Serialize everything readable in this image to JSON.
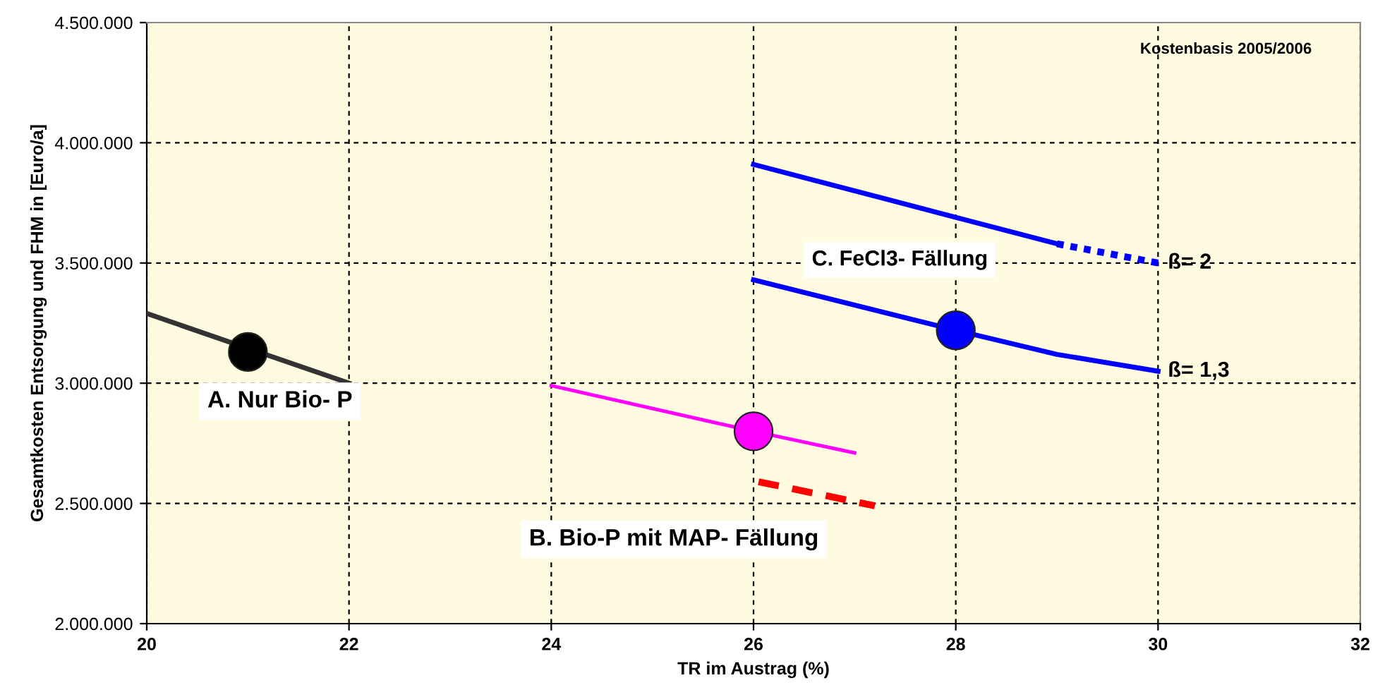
{
  "chart_data": {
    "type": "line",
    "xlabel": "TR im Austrag (%)",
    "ylabel": "Gesamtkosten Entsorgung und FHM in [Euro/a]",
    "xlim": [
      20,
      32
    ],
    "xticks": [
      20,
      22,
      24,
      26,
      28,
      30,
      32
    ],
    "ylim": [
      2000000,
      4500000
    ],
    "yticks": [
      {
        "value": 2000000,
        "label": "2.000.000"
      },
      {
        "value": 2500000,
        "label": "2.500.000"
      },
      {
        "value": 3000000,
        "label": "3.000.000"
      },
      {
        "value": 3500000,
        "label": "3.500.000"
      },
      {
        "value": 4000000,
        "label": "4.000.000"
      },
      {
        "value": 4500000,
        "label": "4.500.000"
      }
    ],
    "grid": true,
    "legend": false,
    "series": [
      {
        "color": "#333333",
        "x": [
          20,
          22
        ],
        "values": [
          3290000,
          3000000
        ],
        "line_style": "solid"
      },
      {
        "color": "#ff00ff",
        "x": [
          24,
          26,
          27
        ],
        "values": [
          2990000,
          2800000,
          2710000
        ],
        "line_style": "solid"
      },
      {
        "color": "#ff0000",
        "x": [
          26.05,
          27.2
        ],
        "values": [
          2590000,
          2490000
        ],
        "line_style": "dashed"
      },
      {
        "color": "#0000ff",
        "x": [
          26,
          28,
          29
        ],
        "values": [
          3910000,
          3690000,
          3580000
        ],
        "line_style": "solid"
      },
      {
        "color": "#0000ff",
        "x": [
          29,
          30
        ],
        "values": [
          3580000,
          3500000
        ],
        "line_style": "dotted"
      },
      {
        "color": "#0000ff",
        "x": [
          26,
          28,
          29,
          30
        ],
        "values": [
          3430000,
          3220000,
          3120000,
          3050000
        ],
        "line_style": "solid"
      },
      {
        "type": "scatter",
        "color": "#000000",
        "x": [
          21
        ],
        "values": [
          3130000
        ],
        "marker": "circle"
      },
      {
        "type": "scatter",
        "color": "#ff00ff",
        "x": [
          26
        ],
        "values": [
          2800000
        ],
        "marker": "circle"
      },
      {
        "type": "scatter",
        "color": "#0000ff",
        "x": [
          28
        ],
        "values": [
          3220000
        ],
        "marker": "circle"
      }
    ],
    "annotations": [
      "Kostenbasis 2005/2006",
      "A. Nur Bio- P",
      "B. Bio-P mit MAP- Fällung",
      "C. FeCl3- Fällung",
      {
        "text": "ß= 2",
        "x": 30,
        "y": 3500000
      },
      {
        "text": "ß= 1,3",
        "x": 30,
        "y": 3050000
      }
    ]
  }
}
